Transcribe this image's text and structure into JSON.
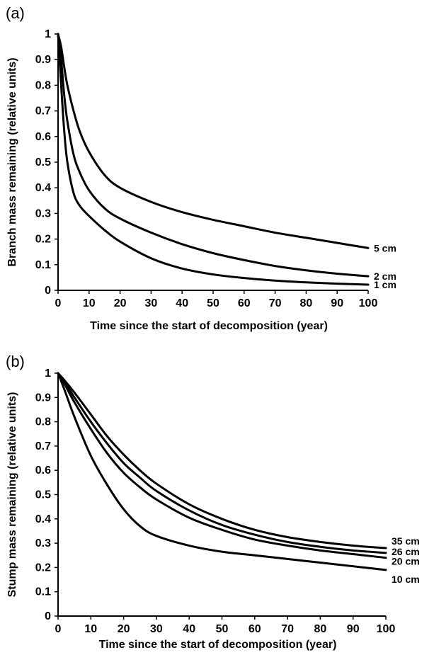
{
  "chart_data": [
    {
      "panel": "(a)",
      "type": "line",
      "xlabel": "Time since the start of decomposition (year)",
      "ylabel": "Branch mass remaining (relative units)",
      "xlim": [
        0,
        100
      ],
      "ylim": [
        0,
        1
      ],
      "xticks": [
        0,
        10,
        20,
        30,
        40,
        50,
        60,
        70,
        80,
        90,
        100
      ],
      "yticks": [
        0,
        0.1,
        0.2,
        0.3,
        0.4,
        0.5,
        0.6,
        0.7,
        0.8,
        0.9,
        1
      ],
      "grid": false,
      "legend": "curve labels at right end",
      "x": [
        0,
        1,
        2,
        3,
        5,
        7,
        10,
        15,
        20,
        30,
        40,
        50,
        60,
        70,
        80,
        90,
        100
      ],
      "series": [
        {
          "name": "5 cm",
          "values": [
            1.0,
            0.95,
            0.87,
            0.8,
            0.7,
            0.62,
            0.54,
            0.45,
            0.4,
            0.345,
            0.305,
            0.275,
            0.25,
            0.225,
            0.205,
            0.185,
            0.165
          ]
        },
        {
          "name": "2 cm",
          "values": [
            1.0,
            0.9,
            0.76,
            0.66,
            0.53,
            0.46,
            0.39,
            0.32,
            0.28,
            0.225,
            0.18,
            0.145,
            0.118,
            0.095,
            0.078,
            0.065,
            0.055
          ]
        },
        {
          "name": "1 cm",
          "values": [
            1.0,
            0.8,
            0.62,
            0.5,
            0.38,
            0.33,
            0.29,
            0.235,
            0.19,
            0.125,
            0.085,
            0.062,
            0.048,
            0.038,
            0.031,
            0.026,
            0.022
          ]
        }
      ]
    },
    {
      "panel": "(b)",
      "type": "line",
      "xlabel": "Time since the start of decomposition (year)",
      "ylabel": "Stump mass remaining (relative units)",
      "xlim": [
        0,
        100
      ],
      "ylim": [
        0,
        1
      ],
      "xticks": [
        0,
        10,
        20,
        30,
        40,
        50,
        60,
        70,
        80,
        90,
        100
      ],
      "yticks": [
        0,
        0.1,
        0.2,
        0.3,
        0.4,
        0.5,
        0.6,
        0.7,
        0.8,
        0.9,
        1
      ],
      "grid": false,
      "legend": "curve labels at right end",
      "x": [
        0,
        2,
        5,
        10,
        15,
        20,
        25,
        30,
        40,
        50,
        60,
        70,
        80,
        90,
        100
      ],
      "series": [
        {
          "name": "35 cm",
          "values": [
            1.0,
            0.97,
            0.92,
            0.83,
            0.74,
            0.665,
            0.6,
            0.545,
            0.46,
            0.4,
            0.355,
            0.325,
            0.305,
            0.29,
            0.28
          ]
        },
        {
          "name": "26 cm",
          "values": [
            1.0,
            0.965,
            0.9,
            0.8,
            0.71,
            0.63,
            0.57,
            0.515,
            0.435,
            0.375,
            0.335,
            0.305,
            0.285,
            0.27,
            0.26
          ]
        },
        {
          "name": "20 cm",
          "values": [
            1.0,
            0.955,
            0.88,
            0.77,
            0.67,
            0.59,
            0.53,
            0.48,
            0.405,
            0.355,
            0.315,
            0.29,
            0.27,
            0.255,
            0.24
          ]
        },
        {
          "name": "10 cm",
          "values": [
            1.0,
            0.93,
            0.82,
            0.66,
            0.54,
            0.44,
            0.37,
            0.33,
            0.29,
            0.265,
            0.25,
            0.235,
            0.22,
            0.205,
            0.19
          ]
        }
      ]
    }
  ]
}
